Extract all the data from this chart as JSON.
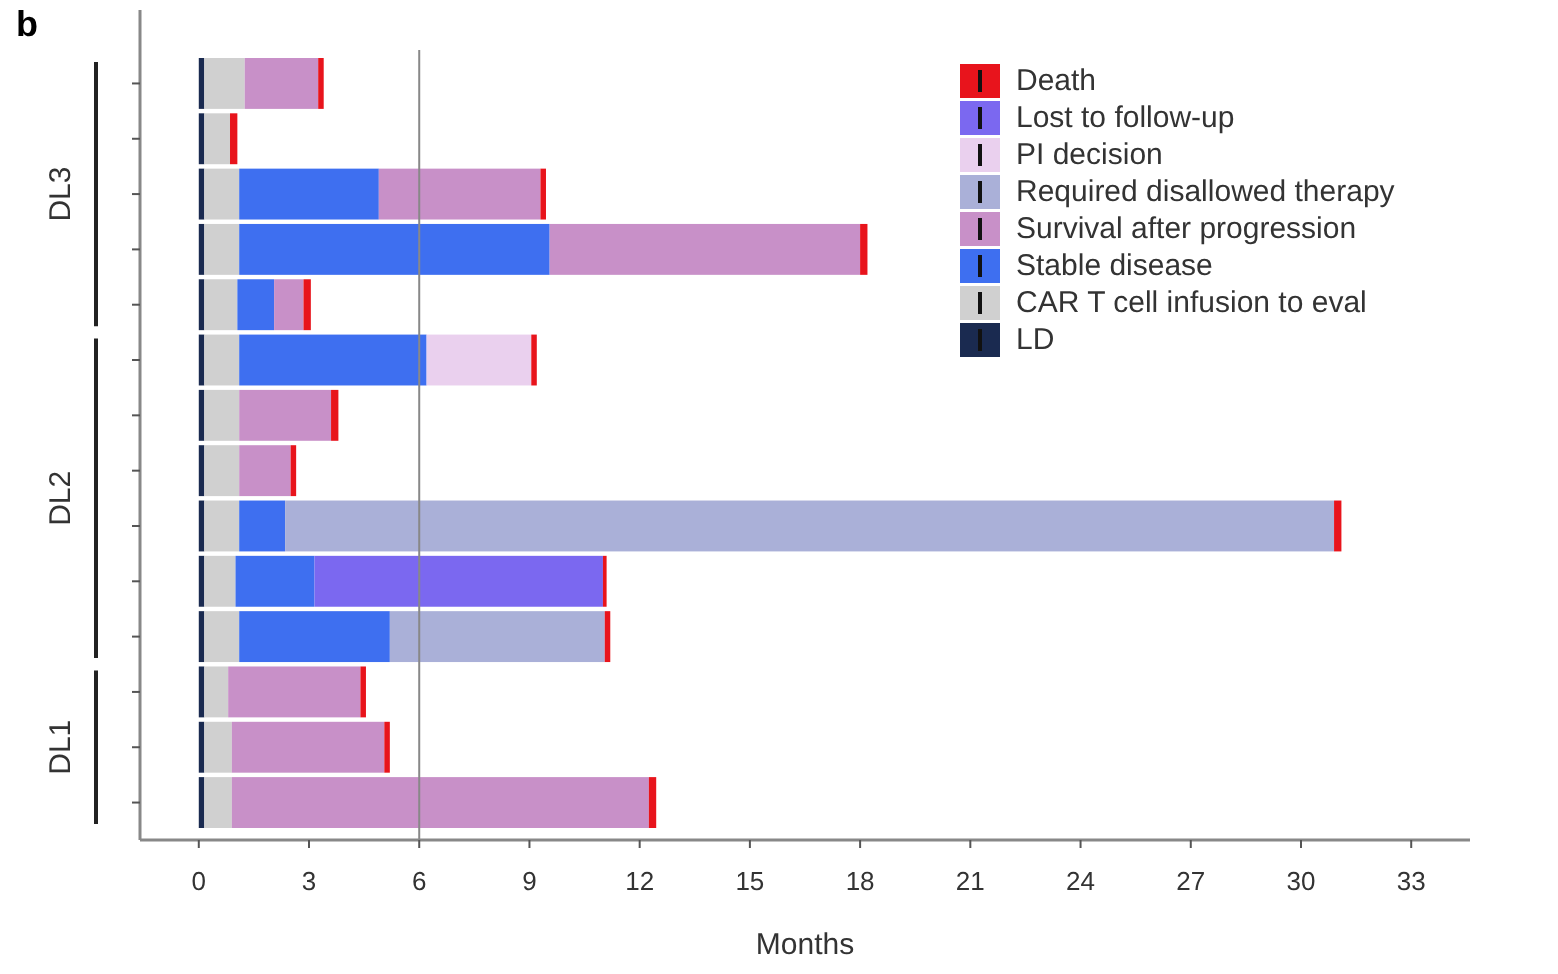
{
  "chart_data": {
    "type": "bar",
    "orientation": "horizontal",
    "stacked": true,
    "title": "b",
    "xlabel": "Months",
    "categories": [
      null,
      null,
      null,
      null,
      null,
      null,
      null,
      null,
      null,
      null,
      null,
      null,
      null,
      null
    ],
    "series": [
      {
        "name": "LD",
        "color": "#1a2a50",
        "values": [
          0.15,
          0.15,
          0.15,
          0.15,
          0.15,
          0.15,
          0.15,
          0.15,
          0.15,
          0.15,
          0.15,
          0.15,
          0.15,
          0.15
        ]
      },
      {
        "name": "CAR T cell infusion to eval",
        "color": "#d0d0d0",
        "values": [
          1.1,
          0.7,
          0.95,
          0.95,
          0.9,
          0.95,
          0.95,
          0.95,
          0.95,
          0.85,
          0.95,
          0.65,
          0.75,
          0.75
        ]
      },
      {
        "name": "Stable disease",
        "color": "#3e6ff0",
        "values": [
          null,
          null,
          3.8,
          8.45,
          1.0,
          5.1,
          null,
          null,
          1.25,
          2.15,
          4.1,
          null,
          null,
          null
        ]
      },
      {
        "name": "Survival after progression",
        "color": "#c890c8",
        "values": [
          2.0,
          null,
          4.4,
          8.45,
          0.8,
          null,
          2.5,
          1.4,
          null,
          null,
          null,
          3.6,
          4.15,
          11.35
        ]
      },
      {
        "name": "Required disallowed therapy",
        "color": "#aab0d8",
        "values": [
          null,
          null,
          null,
          null,
          null,
          null,
          null,
          null,
          28.55,
          null,
          5.85,
          null,
          null,
          null
        ]
      },
      {
        "name": "PI decision",
        "color": "#ead0ee",
        "values": [
          null,
          null,
          null,
          null,
          null,
          2.85,
          null,
          null,
          null,
          null,
          null,
          null,
          null,
          null
        ]
      },
      {
        "name": "Lost to follow-up",
        "color": "#7b68f0",
        "values": [
          null,
          null,
          null,
          null,
          null,
          null,
          null,
          null,
          null,
          7.85,
          null,
          null,
          null,
          null
        ]
      },
      {
        "name": "Death",
        "color": "#e8141c",
        "values": [
          0.15,
          0.2,
          0.15,
          0.2,
          0.2,
          0.15,
          0.2,
          0.15,
          0.2,
          0.1,
          0.15,
          0.15,
          0.15,
          0.2
        ]
      }
    ],
    "xlim": [
      -1.6,
      34.6
    ],
    "xticks": [
      0,
      3,
      6,
      9,
      12,
      15,
      18,
      21,
      24,
      27,
      30,
      33
    ],
    "ref_lines": [
      {
        "axis": "x",
        "value": 6,
        "color": "#888888"
      }
    ],
    "annotations": [
      "DL3",
      "DL2",
      "DL1"
    ],
    "legend": "top right",
    "tick_labels": "x"
  }
}
